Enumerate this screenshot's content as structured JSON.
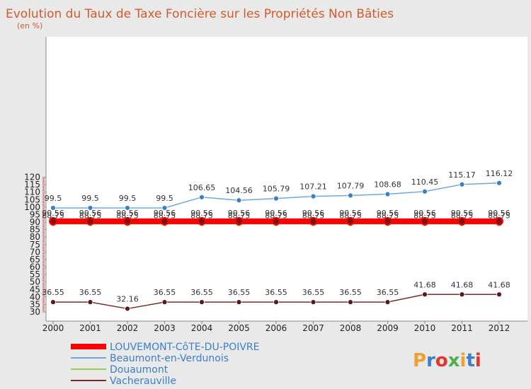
{
  "chart_data": {
    "type": "line",
    "title": "Evolution du Taux de Taxe Foncière sur les Propriétés Non Bâties",
    "unit": "(en %)",
    "xlabel": "",
    "ylabel": "",
    "x": [
      "2000",
      "2001",
      "2002",
      "2003",
      "2004",
      "2005",
      "2006",
      "2007",
      "2008",
      "2009",
      "2010",
      "2011",
      "2012"
    ],
    "ylim": [
      30,
      120
    ],
    "yticks": [
      "30",
      "35",
      "40",
      "45",
      "50",
      "55",
      "60",
      "65",
      "70",
      "75",
      "80",
      "85",
      "90",
      "95",
      "100",
      "105",
      "110",
      "115",
      "120"
    ],
    "grid": false,
    "legend_position": "bottom-left",
    "series": [
      {
        "name": "LOUVEMONT-CôTE-DU-POIVRE",
        "color": "#ff0000",
        "values": [
          90.56,
          90.56,
          90.56,
          90.56,
          90.56,
          90.56,
          90.56,
          90.56,
          90.56,
          90.56,
          90.56,
          90.56,
          90.56
        ],
        "labels": [
          "90.56",
          "90.56",
          "90.56",
          "90.56",
          "90.56",
          "90.56",
          "90.56",
          "90.56",
          "90.56",
          "90.56",
          "90.56",
          "90.56",
          "90.56"
        ]
      },
      {
        "name": "Beaumont-en-Verdunois",
        "color": "#6fa8dc",
        "values": [
          99.5,
          99.5,
          99.5,
          99.5,
          106.65,
          104.56,
          105.79,
          107.21,
          107.79,
          108.68,
          110.45,
          115.17,
          116.12
        ],
        "labels": [
          "99.5",
          "99.5",
          "99.5",
          "99.5",
          "106.65",
          "104.56",
          "105.79",
          "107.21",
          "107.79",
          "108.68",
          "110.45",
          "115.17",
          "116.12"
        ]
      },
      {
        "name": "Douaumont",
        "color": "#8fd14f",
        "values": [
          88.75,
          88.75,
          88.75,
          88.75,
          88.75,
          88.75,
          88.75,
          88.75,
          88.75,
          88.75,
          88.75,
          88.75,
          88.75
        ],
        "labels": [
          "88.75",
          "88.75",
          "88.75",
          "88.75",
          "88.75",
          "88.75",
          "88.75",
          "88.75",
          "88.75",
          "88.75",
          "88.75",
          "88.75",
          "88.75"
        ]
      },
      {
        "name": "Vacherauville",
        "color": "#7a2a2a",
        "values": [
          36.55,
          36.55,
          32.16,
          36.55,
          36.55,
          36.55,
          36.55,
          36.55,
          36.55,
          36.55,
          41.68,
          41.68,
          41.68
        ],
        "labels": [
          "36.55",
          "36.55",
          "32.16",
          "36.55",
          "36.55",
          "36.55",
          "36.55",
          "36.55",
          "36.55",
          "36.55",
          "41.68",
          "41.68",
          "41.68"
        ]
      }
    ]
  },
  "logo": {
    "text": "Proxiti",
    "colors": [
      "#f0a030",
      "#3a7fc8",
      "#e2362c",
      "#4caf50"
    ]
  }
}
